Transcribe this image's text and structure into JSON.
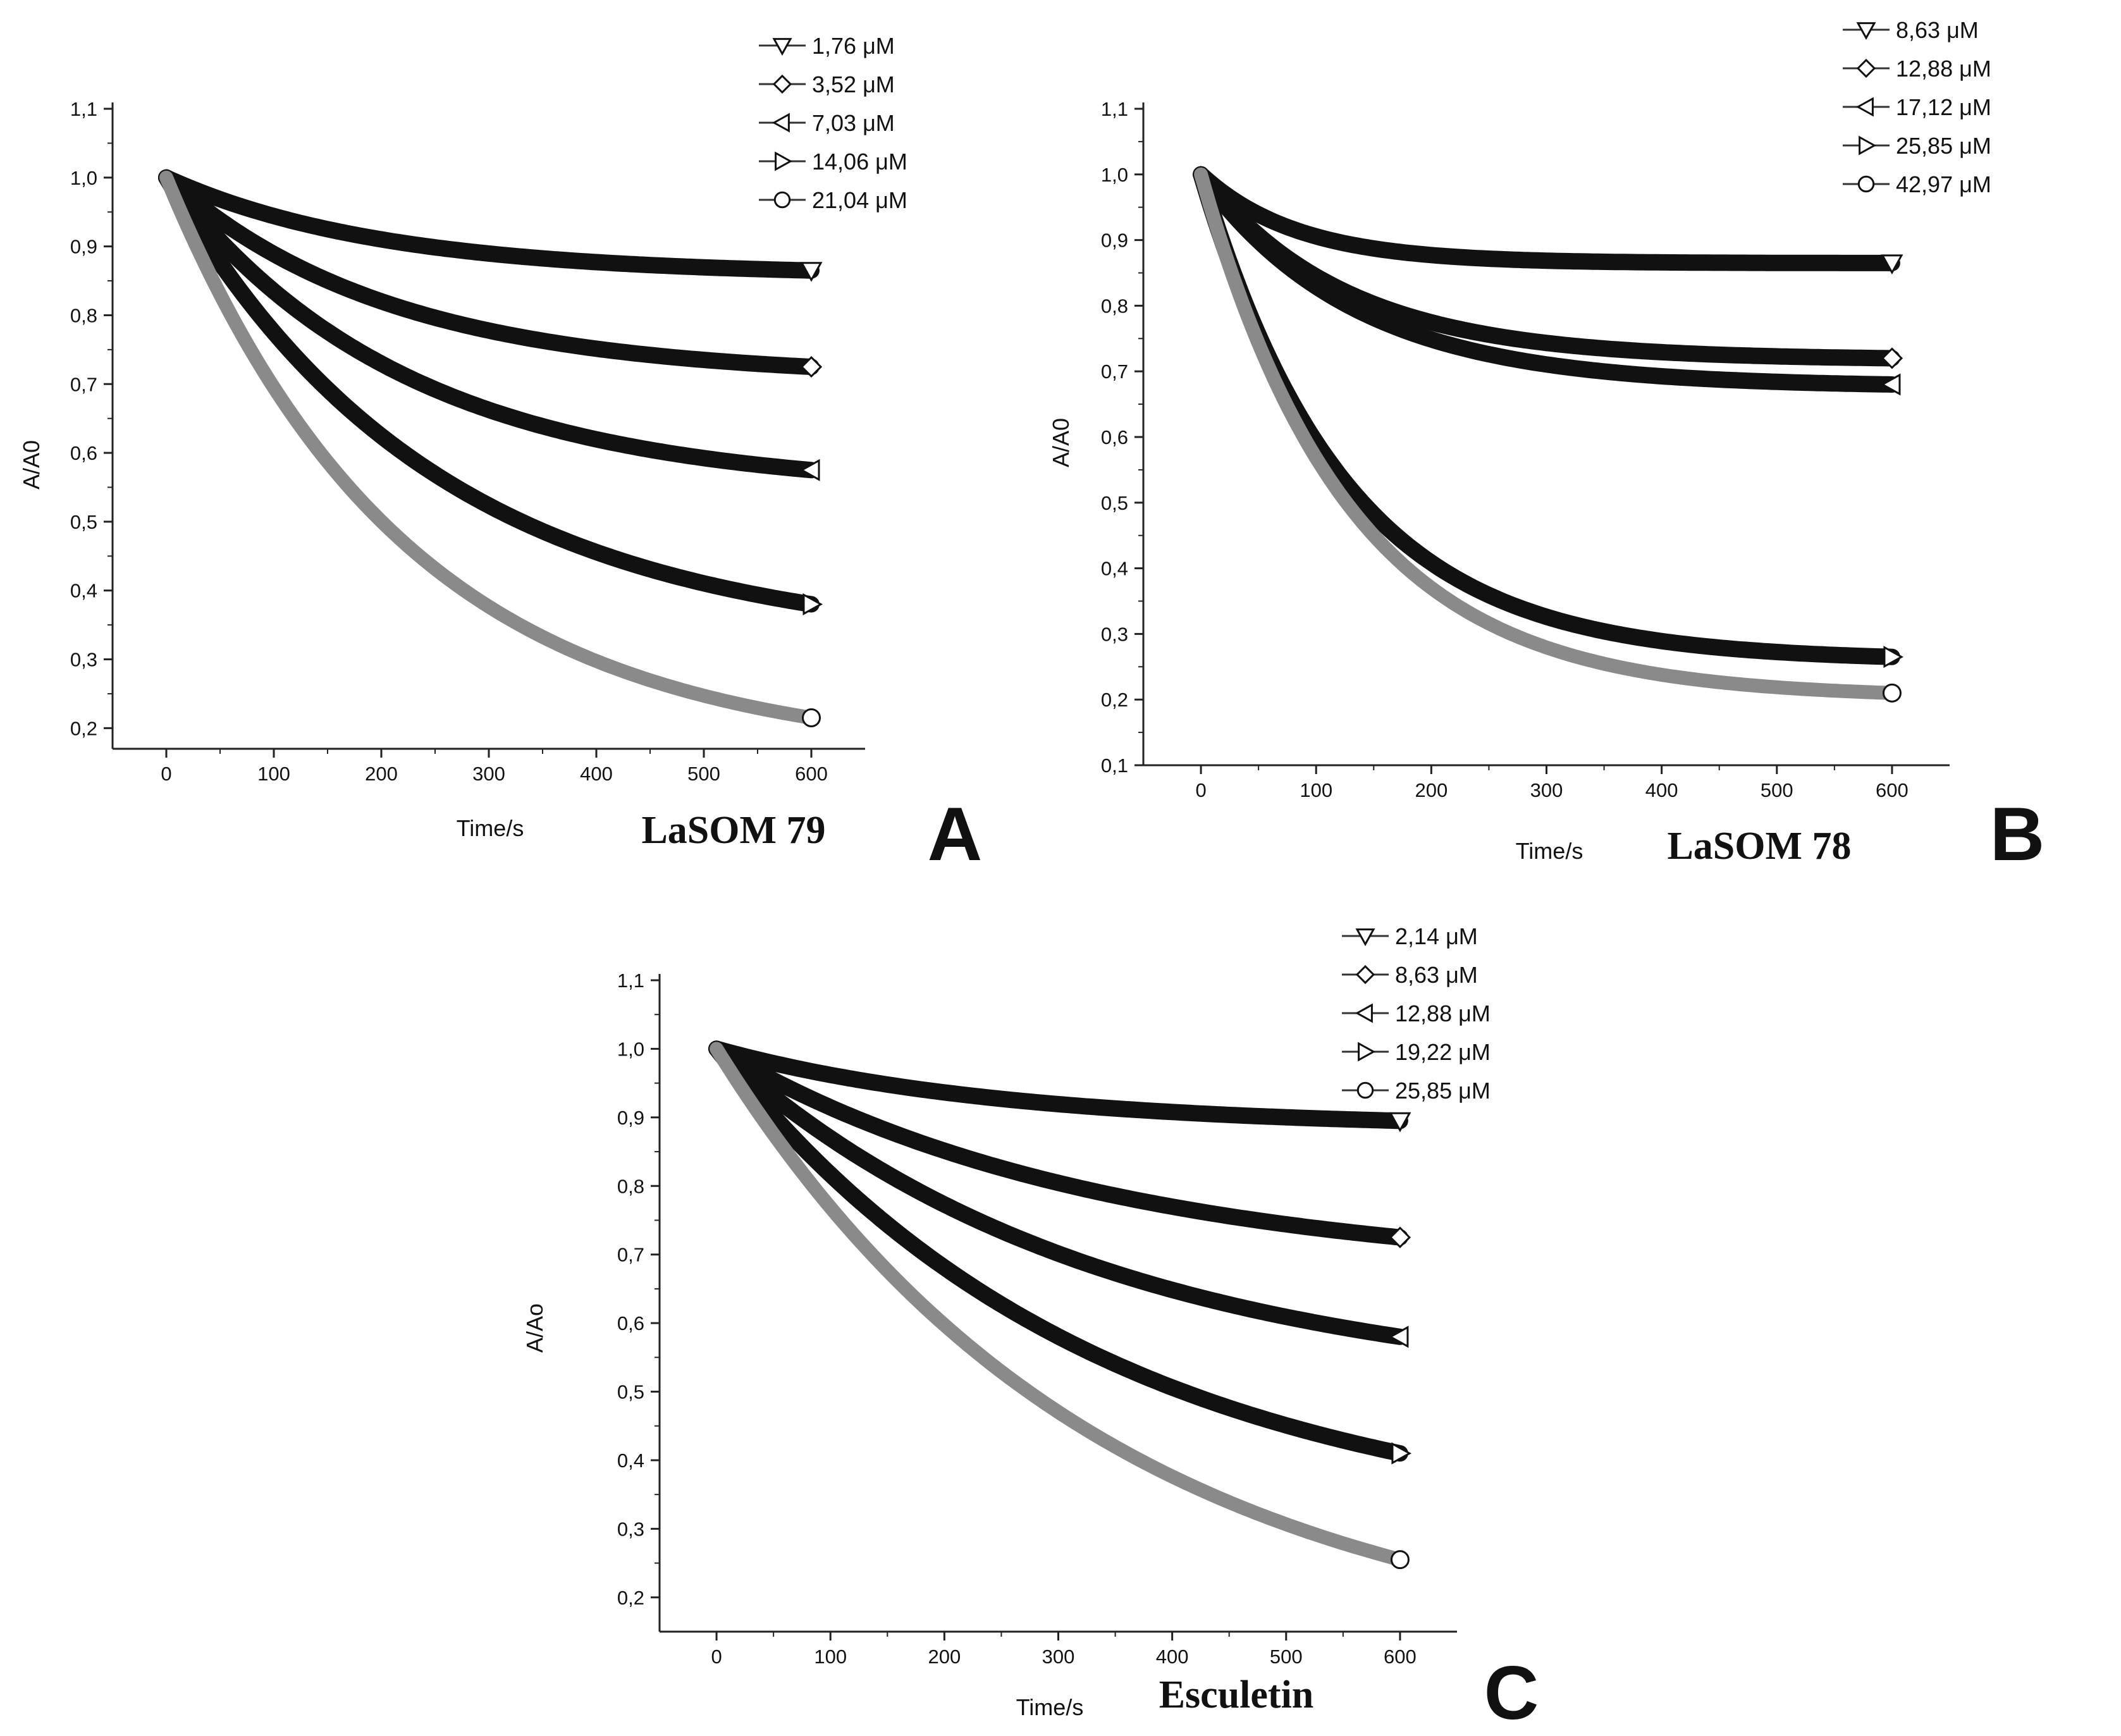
{
  "figure": {
    "background": "#ffffff",
    "axis_color": "#222222",
    "curve_color": "#111111",
    "fast_curve_color": "#8a8a8a"
  },
  "chart_data": [
    {
      "type": "line",
      "panel": "A",
      "compound": "LaSOM 79",
      "xlabel": "Time/s",
      "ylabel": "A/A0",
      "xlim": [
        -50,
        650
      ],
      "ylim": [
        0.17,
        1.1
      ],
      "xticks": [
        0,
        100,
        200,
        300,
        400,
        500,
        600
      ],
      "yticks": [
        0.2,
        0.3,
        0.4,
        0.5,
        0.6,
        0.7,
        0.8,
        0.9,
        1.0,
        1.1
      ],
      "ytick_labels": [
        "0,2",
        "0,3",
        "0,4",
        "0,5",
        "0,6",
        "0,7",
        "0,8",
        "0,9",
        "1,0",
        "1,1"
      ],
      "legend_position": "top-right",
      "series": [
        {
          "name": "1,76  μM",
          "marker": "triangle-down",
          "y0": 1.0,
          "yend": 0.865,
          "k": 0.005,
          "color": "#111111"
        },
        {
          "name": "3,52  μM",
          "marker": "diamond",
          "y0": 1.0,
          "yend": 0.725,
          "k": 0.0048,
          "color": "#111111"
        },
        {
          "name": "7,03  μM",
          "marker": "triangle-left",
          "y0": 1.0,
          "yend": 0.575,
          "k": 0.0045,
          "color": "#111111"
        },
        {
          "name": "14,06 μM",
          "marker": "triangle-right",
          "y0": 1.0,
          "yend": 0.38,
          "k": 0.004,
          "color": "#111111"
        },
        {
          "name": "21,04 μM",
          "marker": "circle",
          "y0": 1.0,
          "yend": 0.215,
          "k": 0.0045,
          "color": "#8a8a8a"
        }
      ]
    },
    {
      "type": "line",
      "panel": "B",
      "compound": "LaSOM 78",
      "xlabel": "Time/s",
      "ylabel": "A/A0",
      "xlim": [
        -50,
        650
      ],
      "ylim": [
        0.1,
        1.1
      ],
      "xticks": [
        0,
        100,
        200,
        300,
        400,
        500,
        600
      ],
      "yticks": [
        0.1,
        0.2,
        0.3,
        0.4,
        0.5,
        0.6,
        0.7,
        0.8,
        0.9,
        1.0,
        1.1
      ],
      "ytick_labels": [
        "0,1",
        "0,2",
        "0,3",
        "0,4",
        "0,5",
        "0,6",
        "0,7",
        "0,8",
        "0,9",
        "1,0",
        "1,1"
      ],
      "legend_position": "top-right",
      "series": [
        {
          "name": "8,63  μM",
          "marker": "triangle-down",
          "y0": 1.0,
          "yend": 0.865,
          "k": 0.012,
          "color": "#111111"
        },
        {
          "name": "12,88 μM",
          "marker": "diamond",
          "y0": 1.0,
          "yend": 0.72,
          "k": 0.008,
          "color": "#111111"
        },
        {
          "name": "17,12 μM",
          "marker": "triangle-left",
          "y0": 1.0,
          "yend": 0.68,
          "k": 0.0075,
          "color": "#111111"
        },
        {
          "name": "25,85 μM",
          "marker": "triangle-right",
          "y0": 1.0,
          "yend": 0.265,
          "k": 0.008,
          "color": "#111111"
        },
        {
          "name": "42,97 μM",
          "marker": "circle",
          "y0": 1.0,
          "yend": 0.21,
          "k": 0.0078,
          "color": "#8a8a8a"
        }
      ]
    },
    {
      "type": "line",
      "panel": "C",
      "compound": "Esculetin",
      "xlabel": "Time/s",
      "ylabel": "A/Ao",
      "xlim": [
        -50,
        650
      ],
      "ylim": [
        0.15,
        1.1
      ],
      "xticks": [
        0,
        100,
        200,
        300,
        400,
        500,
        600
      ],
      "yticks": [
        0.2,
        0.3,
        0.4,
        0.5,
        0.6,
        0.7,
        0.8,
        0.9,
        1.0,
        1.1
      ],
      "ytick_labels": [
        "0,2",
        "0,3",
        "0,4",
        "0,5",
        "0,6",
        "0,7",
        "0,8",
        "0,9",
        "1,0",
        "1,1"
      ],
      "legend_position": "top-right",
      "series": [
        {
          "name": "2,14  μM",
          "marker": "triangle-down",
          "y0": 1.0,
          "yend": 0.895,
          "k": 0.004,
          "color": "#111111"
        },
        {
          "name": "8,63  μM",
          "marker": "diamond",
          "y0": 1.0,
          "yend": 0.725,
          "k": 0.003,
          "color": "#111111"
        },
        {
          "name": "12,88 μM",
          "marker": "triangle-left",
          "y0": 1.0,
          "yend": 0.58,
          "k": 0.003,
          "color": "#111111"
        },
        {
          "name": "19,22 μM",
          "marker": "triangle-right",
          "y0": 1.0,
          "yend": 0.41,
          "k": 0.003,
          "color": "#111111"
        },
        {
          "name": "25,85 μM",
          "marker": "circle",
          "y0": 1.0,
          "yend": 0.255,
          "k": 0.003,
          "color": "#8a8a8a"
        }
      ]
    }
  ]
}
